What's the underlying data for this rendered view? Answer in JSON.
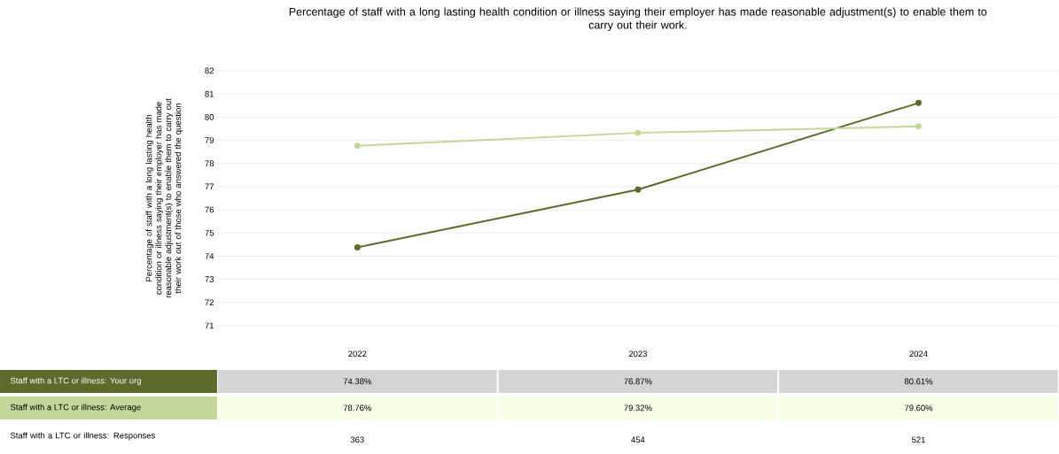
{
  "chart_data": {
    "type": "line",
    "title": "Percentage of staff with a long lasting health condition or illness saying their employer has made reasonable adjustment(s) to enable them to carry out their work.",
    "ylabel": "Percentage of staff with a long lasting health condition or illness saying their employer has made reasonable adjustment(s) to enable them to carry out their work out of those who answered the question",
    "categories": [
      "2022",
      "2023",
      "2024"
    ],
    "series": [
      {
        "name": "Staff with a LTC or illness: Your org",
        "color": "#5b6b2b",
        "values": [
          74.38,
          76.87,
          80.61
        ],
        "value_labels": [
          "74.38%",
          "76.87%",
          "80.61%"
        ]
      },
      {
        "name": "Staff with a LTC or illness: Average",
        "color": "#c4d79b",
        "values": [
          78.76,
          79.32,
          79.6
        ],
        "value_labels": [
          "78.76%",
          "79.32%",
          "79.60%"
        ]
      }
    ],
    "annotations": [
      "Staff with a LTC or illness: Responses",
      "363",
      "454",
      "521"
    ],
    "ylim": [
      71,
      82
    ],
    "yticks": [
      71,
      72,
      73,
      74,
      75,
      76,
      77,
      78,
      79,
      80,
      81,
      82
    ],
    "grid": "y",
    "legend": "bottom",
    "marker": "circle",
    "line_style": "solid"
  }
}
